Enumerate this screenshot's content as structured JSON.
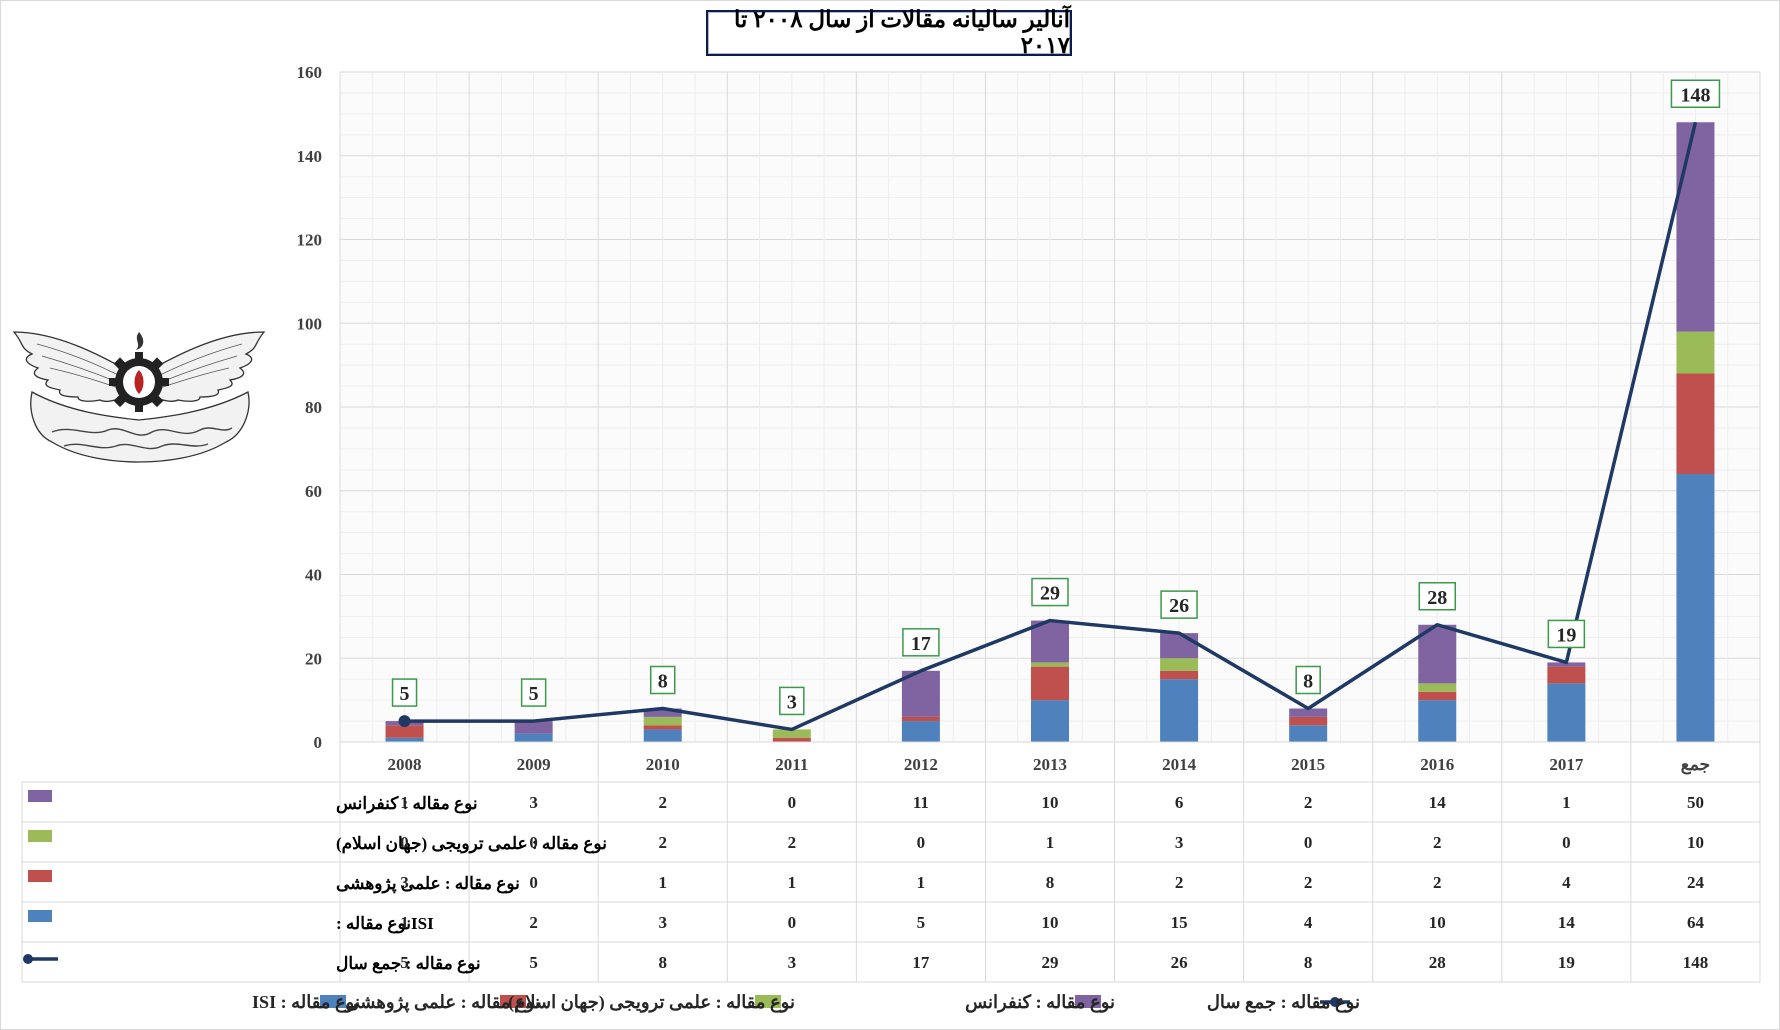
{
  "title": "آنالیر سالیانه مقالات از سال ۲۰۰۸ تا ۲۰۱۷",
  "colors": {
    "isi": "#4f81bd",
    "research": "#c0504d",
    "promotional": "#9bbb59",
    "conference": "#8064a2",
    "total_line": "#1f3864",
    "label_border": "#3a9a4a"
  },
  "chart_data": {
    "type": "bar",
    "stacked": true,
    "categories": [
      "2008",
      "2009",
      "2010",
      "2011",
      "2012",
      "2013",
      "2014",
      "2015",
      "2016",
      "2017",
      "جمع"
    ],
    "ylim": [
      0,
      160
    ],
    "yticks": [
      0,
      20,
      40,
      60,
      80,
      100,
      120,
      140,
      160
    ],
    "grid": true,
    "legend_position": "bottom",
    "series": [
      {
        "key": "isi",
        "name": "نوع مقاله : ISI",
        "table_label": "ISIنوع مقاله :",
        "type": "bar",
        "values": [
          1,
          2,
          3,
          0,
          5,
          10,
          15,
          4,
          10,
          14,
          64
        ]
      },
      {
        "key": "research",
        "name": "نوع مقاله : علمی پژوهشی",
        "table_label": "نوع مقاله : علمی پژوهشی",
        "type": "bar",
        "values": [
          3,
          0,
          1,
          1,
          1,
          8,
          2,
          2,
          2,
          4,
          24
        ]
      },
      {
        "key": "promotional",
        "name": "نوع مقاله : علمی ترویجی (جهان اسلام)",
        "table_label": "نوع مقاله : علمی ترویجی (جهان اسلام)",
        "type": "bar",
        "values": [
          0,
          0,
          2,
          2,
          0,
          1,
          3,
          0,
          2,
          0,
          10
        ]
      },
      {
        "key": "conference",
        "name": "نوع مقاله : کنفرانس",
        "table_label": "نوع مقاله : کنفرانس",
        "type": "bar",
        "values": [
          1,
          3,
          2,
          0,
          11,
          10,
          6,
          2,
          14,
          1,
          50
        ]
      },
      {
        "key": "total_line",
        "name": "نوع مقاله : جمع سال",
        "table_label": "نوع مقاله : جمع سال",
        "type": "line",
        "values": [
          5,
          5,
          8,
          3,
          17,
          29,
          26,
          8,
          28,
          19,
          148
        ]
      }
    ],
    "table_row_order": [
      "conference",
      "promotional",
      "research",
      "isi",
      "total_line"
    ],
    "legend_order": [
      "isi",
      "research",
      "promotional",
      "conference",
      "total_line"
    ]
  },
  "logo": {
    "icon": "winged-gear-emblem-icon"
  }
}
